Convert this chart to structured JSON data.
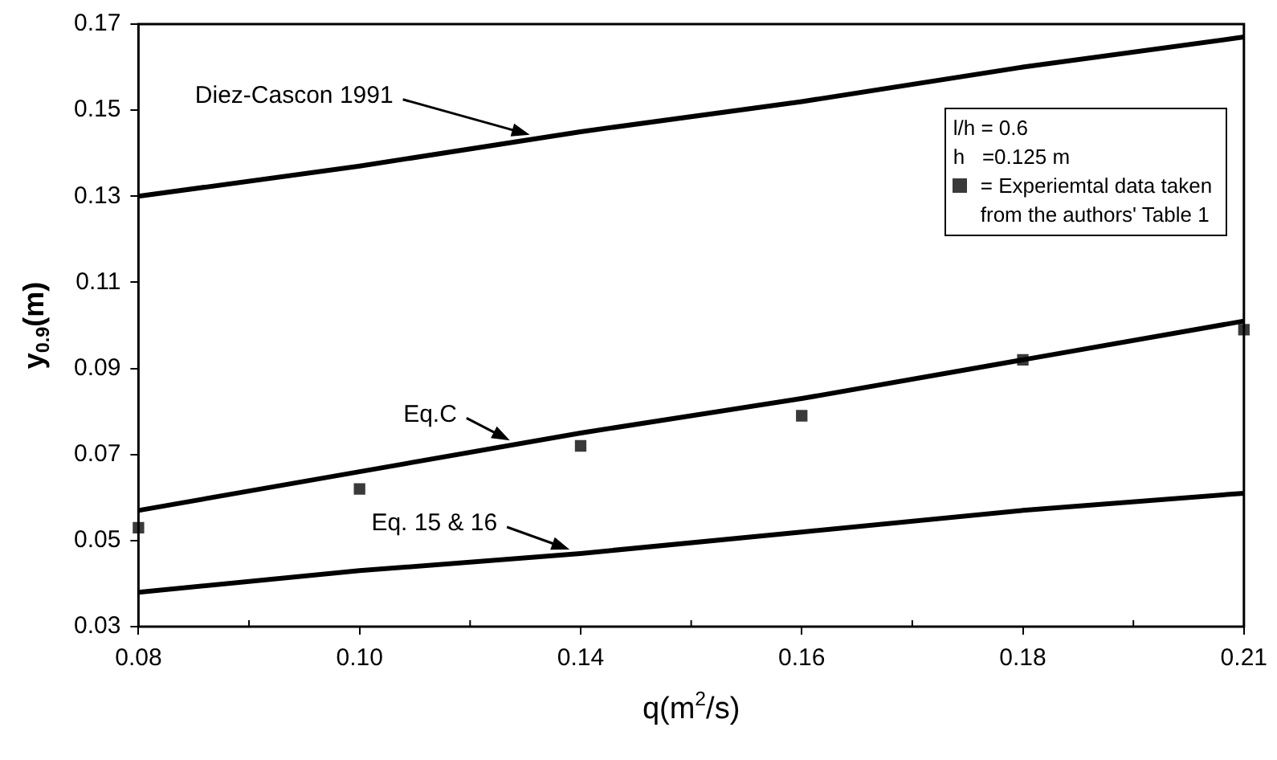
{
  "chart_data": {
    "type": "line",
    "xlabel": "q(m$^{2}$/s)",
    "ylabel": "y$_{0.9}$(m)",
    "categories": [
      "0.08",
      "0.10",
      "0.14",
      "0.16",
      "0.18",
      "0.21"
    ],
    "series": [
      {
        "color": "#000000",
        "values": [
          0.13,
          0.137,
          0.145,
          0.152,
          0.16,
          0.167
        ]
      },
      {
        "color": "#000000",
        "values": [
          0.057,
          0.066,
          0.075,
          0.083,
          0.092,
          0.101
        ]
      },
      {
        "color": "#000000",
        "values": [
          0.038,
          0.043,
          0.047,
          0.052,
          0.057,
          0.061
        ]
      },
      {
        "name": "= Experiemtal data taken from the authors' Table 1",
        "type": "scatter",
        "marker": "square",
        "color": "#3a3a3a",
        "x": [
          "0.08",
          "0.10",
          "0.14",
          "0.16",
          "0.18",
          "0.21"
        ],
        "values": [
          0.053,
          0.062,
          0.072,
          0.079,
          0.092,
          0.099
        ]
      }
    ],
    "ylim": [
      0.03,
      0.17
    ],
    "yticks": [
      0.03,
      0.05,
      0.07,
      0.09,
      0.11,
      0.13,
      0.15,
      0.17
    ],
    "grid": false,
    "legend": "top right",
    "marker": "none",
    "line_style": "solid",
    "annotations": [
      "l/h = 0.6",
      "h   =0.125 m",
      "Diez-Cascon 1991",
      "Eq.C",
      "Eq. 15 & 16"
    ]
  }
}
